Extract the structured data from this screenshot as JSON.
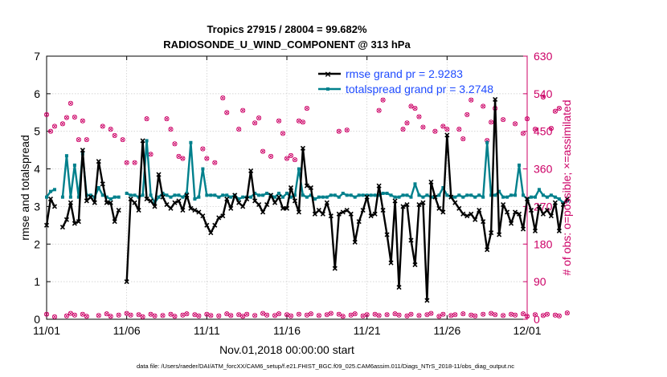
{
  "chart_data": {
    "type": "line",
    "title": [
      "Tropics 27915 / 28004 = 99.682%",
      "RADIOSONDE_U_WIND_COMPONENT @ 313 hPa"
    ],
    "xlabel": "Nov.01,2018 00:00:00 start",
    "ylabel_left": "rmse and totalspread",
    "ylabel_right": "# of obs: o=possible; ×=assimilated",
    "footnote": "data file: /Users/raeder/DAI/ATM_forcXX/CAM6_setup/f.e21.FHIST_BGC.f09_025.CAM6assim.011/Diags_NTrS_2018-11/obs_diag_output.nc",
    "x_range": [
      0,
      30
    ],
    "ylim_left": [
      0,
      7
    ],
    "ylim_right": [
      0,
      630
    ],
    "x_ticks": [
      {
        "value": 0,
        "label": "11/01"
      },
      {
        "value": 5,
        "label": "11/06"
      },
      {
        "value": 10,
        "label": "11/11"
      },
      {
        "value": 15,
        "label": "11/16"
      },
      {
        "value": 20,
        "label": "11/21"
      },
      {
        "value": 25,
        "label": "11/26"
      },
      {
        "value": 30,
        "label": "12/01"
      }
    ],
    "y_ticks_left": [
      "0",
      "1",
      "2",
      "3",
      "4",
      "5",
      "6",
      "7"
    ],
    "y_ticks_right": [
      "0",
      "90",
      "180",
      "270",
      "360",
      "450",
      "540",
      "630"
    ],
    "x_step_days": 0.25,
    "colors": {
      "rmse": "#000000",
      "spread": "#00808c",
      "obs": "#cc0066",
      "legend_text": "#1f4bff",
      "right_axis": "#cc0066"
    },
    "series": [
      {
        "name": "rmse",
        "legend": "rmse grand pr = 2.9283",
        "values": [
          2.5,
          3.2,
          3.0,
          null,
          2.45,
          2.65,
          3.1,
          2.55,
          2.6,
          4.5,
          3.15,
          3.25,
          3.1,
          4.2,
          3.6,
          3.1,
          3.1,
          2.6,
          2.9,
          null,
          1.0,
          3.2,
          3.1,
          2.9,
          4.75,
          3.2,
          3.15,
          3.0,
          3.85,
          3.25,
          3.05,
          2.95,
          3.1,
          3.15,
          2.9,
          3.3,
          2.95,
          2.9,
          2.85,
          2.75,
          2.5,
          2.3,
          2.5,
          2.7,
          2.75,
          3.2,
          2.95,
          3.3,
          3.1,
          3.0,
          3.2,
          3.95,
          3.15,
          3.05,
          2.85,
          3.05,
          3.3,
          3.1,
          3.25,
          2.95,
          2.95,
          3.5,
          3.15,
          2.85,
          4.55,
          3.55,
          3.5,
          2.8,
          2.9,
          2.8,
          3.1,
          2.75,
          1.35,
          2.8,
          2.85,
          2.9,
          2.8,
          2.05,
          2.6,
          2.9,
          3.25,
          2.75,
          2.8,
          3.55,
          2.9,
          2.25,
          1.5,
          3.15,
          0.85,
          3.0,
          3.05,
          2.1,
          1.45,
          3.05,
          3.1,
          0.5,
          3.65,
          3.25,
          2.95,
          2.85,
          4.9,
          3.25,
          3.1,
          2.95,
          2.8,
          2.75,
          2.8,
          2.65,
          2.9,
          2.6,
          1.85,
          2.3,
          5.85,
          2.25,
          3.05,
          2.85,
          2.55,
          2.85,
          2.8,
          2.4,
          3.2,
          2.9,
          2.35,
          3.0,
          2.8,
          2.9,
          2.75,
          3.1,
          2.35,
          3.05,
          3.2
        ]
      },
      {
        "name": "totalspread",
        "legend": "totalspread grand pr = 3.2748",
        "values": [
          3.25,
          3.4,
          3.45,
          null,
          3.25,
          4.35,
          3.25,
          4.1,
          3.25,
          4.4,
          3.3,
          3.3,
          3.25,
          3.5,
          3.3,
          3.25,
          3.2,
          3.25,
          3.25,
          null,
          3.35,
          3.3,
          3.3,
          3.25,
          3.3,
          4.75,
          3.3,
          3.1,
          3.25,
          3.35,
          3.3,
          3.25,
          3.3,
          3.3,
          3.25,
          3.35,
          4.7,
          3.2,
          3.25,
          4.0,
          3.3,
          3.3,
          3.3,
          3.25,
          3.3,
          3.3,
          3.25,
          3.3,
          3.2,
          3.25,
          3.25,
          3.25,
          3.35,
          3.3,
          3.3,
          3.35,
          3.3,
          3.25,
          3.35,
          3.25,
          3.35,
          3.25,
          3.3,
          4.0,
          3.3,
          3.25,
          3.3,
          3.2,
          3.25,
          3.25,
          3.25,
          3.3,
          3.3,
          3.25,
          3.35,
          3.3,
          3.3,
          3.25,
          3.3,
          3.3,
          3.3,
          3.3,
          3.3,
          3.3,
          3.35,
          3.35,
          3.3,
          3.25,
          3.25,
          3.3,
          3.3,
          3.25,
          3.6,
          3.3,
          3.25,
          3.3,
          3.25,
          3.25,
          3.3,
          3.5,
          3.3,
          3.25,
          3.25,
          3.3,
          3.25,
          3.3,
          3.3,
          3.25,
          3.3,
          3.25,
          4.7,
          3.3,
          3.3,
          3.4,
          3.25,
          3.25,
          3.3,
          3.3,
          4.1,
          3.3,
          3.2,
          3.25,
          3.25,
          3.45,
          3.3,
          3.25,
          3.3,
          3.25,
          3.2,
          3.1,
          3.15
        ]
      },
      {
        "name": "obs_possible",
        "values": [
          490,
          450,
          462,
          null,
          468,
          483,
          517,
          484,
          430,
          475,
          430,
          null,
          null,
          null,
          462,
          null,
          455,
          440,
          null,
          430,
          375,
          null,
          375,
          null,
          null,
          480,
          395,
          null,
          null,
          null,
          480,
          455,
          420,
          390,
          385,
          null,
          null,
          null,
          null,
          408,
          385,
          null,
          375,
          null,
          530,
          495,
          null,
          null,
          455,
          500,
          null,
          null,
          470,
          482,
          402,
          null,
          390,
          null,
          475,
          445,
          385,
          392,
          382,
          475,
          472,
          505,
          null,
          null,
          null,
          null,
          null,
          null,
          null,
          450,
          null,
          453,
          null,
          null,
          null,
          null,
          null,
          null,
          null,
          500,
          525,
          null,
          null,
          null,
          null,
          455,
          470,
          510,
          505,
          485,
          460,
          null,
          null,
          450,
          null,
          462,
          455,
          null,
          null,
          455,
          432,
          490,
          525,
          null,
          null,
          510,
          428,
          472,
          505,
          null,
          478,
          null,
          null,
          468,
          null,
          445,
          480,
          null,
          455,
          null,
          532,
          null,
          457,
          498,
          505,
          null,
          null,
          null,
          null
        ]
      },
      {
        "name": "obs_assimilated",
        "values": [
          490,
          450,
          462,
          null,
          468,
          483,
          517,
          484,
          430,
          475,
          430,
          null,
          null,
          null,
          462,
          null,
          455,
          440,
          null,
          430,
          375,
          null,
          375,
          null,
          null,
          480,
          395,
          null,
          null,
          null,
          480,
          455,
          420,
          390,
          385,
          null,
          null,
          null,
          null,
          408,
          385,
          null,
          375,
          null,
          530,
          495,
          null,
          null,
          455,
          500,
          null,
          null,
          470,
          482,
          402,
          null,
          390,
          null,
          475,
          445,
          385,
          392,
          382,
          475,
          472,
          505,
          null,
          null,
          null,
          null,
          null,
          null,
          null,
          450,
          null,
          453,
          null,
          null,
          null,
          null,
          null,
          null,
          null,
          500,
          525,
          null,
          null,
          null,
          null,
          455,
          470,
          510,
          505,
          485,
          460,
          null,
          null,
          450,
          null,
          462,
          455,
          null,
          null,
          455,
          432,
          490,
          525,
          null,
          null,
          510,
          428,
          472,
          505,
          null,
          478,
          null,
          null,
          468,
          null,
          445,
          480,
          null,
          455,
          null,
          532,
          null,
          457,
          498,
          505,
          null,
          null,
          null,
          null
        ]
      }
    ],
    "obs_bottom_values": [
      12,
      null,
      6,
      null,
      null,
      8,
      14,
      10,
      null,
      12,
      7,
      null,
      null,
      9,
      null,
      13,
      7,
      null,
      10,
      null,
      14,
      10,
      null,
      11,
      6,
      null,
      12,
      8,
      null,
      9,
      null,
      12,
      7,
      null,
      10,
      13,
      null,
      11,
      8,
      null,
      12,
      9,
      null,
      8,
      null,
      13,
      9,
      null,
      11,
      7,
      12,
      null,
      9,
      null,
      14,
      10,
      null,
      9,
      13,
      null,
      11,
      8,
      null,
      12,
      null,
      10,
      13,
      null,
      9,
      null,
      11,
      14,
      null,
      12,
      7,
      null,
      10,
      13,
      null,
      8,
      11,
      null,
      12,
      9,
      null,
      11,
      null,
      13,
      10,
      null,
      8,
      12,
      null,
      9,
      null,
      11,
      14,
      null,
      7,
      12,
      null,
      9,
      11,
      null,
      13,
      null,
      10,
      8,
      null,
      12,
      null,
      14,
      11,
      null,
      9,
      null,
      12,
      10,
      null,
      13,
      7,
      null,
      11,
      null,
      9,
      12,
      null,
      10,
      8,
      null,
      15
    ]
  }
}
